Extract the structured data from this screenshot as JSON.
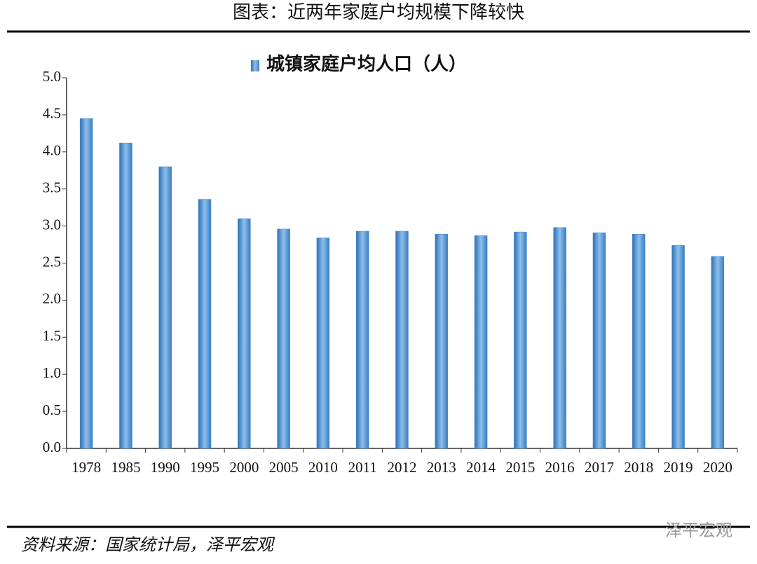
{
  "chart_data": {
    "type": "bar",
    "title": "图表：近两年家庭户均规模下降较快",
    "series": [
      {
        "name": "城镇家庭户均人口（人）",
        "color": "#4a8ccc",
        "values": [
          4.45,
          4.12,
          3.8,
          3.36,
          3.1,
          2.96,
          2.84,
          2.93,
          2.93,
          2.89,
          2.87,
          2.92,
          2.98,
          2.91,
          2.89,
          2.74,
          2.59
        ]
      }
    ],
    "categories": [
      "1978",
      "1985",
      "1990",
      "1995",
      "2000",
      "2005",
      "2010",
      "2011",
      "2012",
      "2013",
      "2014",
      "2015",
      "2016",
      "2017",
      "2018",
      "2019",
      "2020"
    ],
    "ylim": [
      0,
      5
    ],
    "yticks": [
      {
        "value": 0,
        "label": "0.0"
      },
      0.5,
      {
        "value": 1,
        "label": "1.0"
      },
      1.5,
      {
        "value": 2,
        "label": "2.0"
      },
      2.5,
      {
        "value": 3,
        "label": "3.0"
      },
      3.5,
      {
        "value": 4,
        "label": "4.0"
      },
      4.5,
      {
        "value": 5,
        "label": "5.0"
      }
    ],
    "source": "资料来源：国家统计局，泽平宏观",
    "watermark": "泽平宏观"
  }
}
